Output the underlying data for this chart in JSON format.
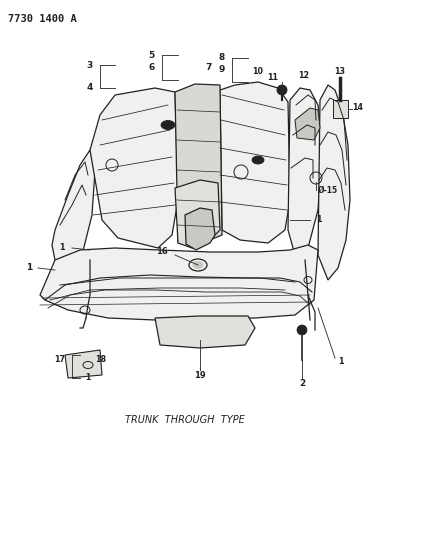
{
  "title": "7730 1400 A",
  "caption": "TRUNK  THROUGH  TYPE",
  "bg_color": "#ffffff",
  "line_color": "#222222",
  "text_color": "#222222",
  "fig_width": 4.28,
  "fig_height": 5.33,
  "dpi": 100
}
